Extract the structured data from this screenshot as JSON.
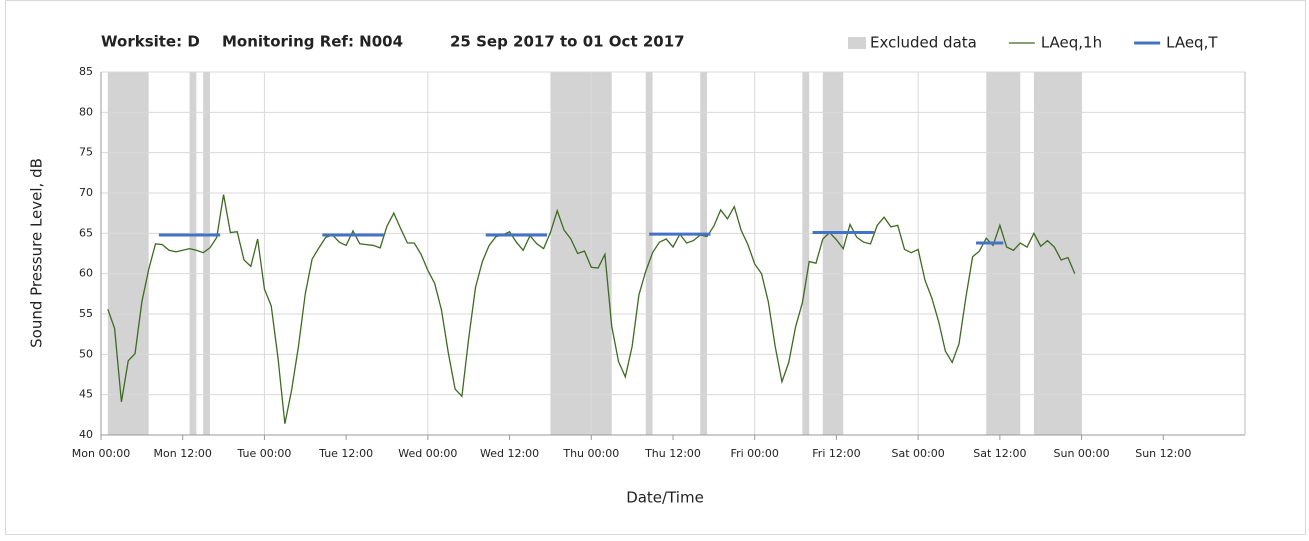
{
  "chart_data": {
    "type": "line",
    "title_parts": [
      "Worksite: D",
      "Monitoring Ref: N004",
      "25 Sep 2017 to 01 Oct 2017"
    ],
    "y_label": "Sound Pressure Level, dB",
    "x_label": "Date/Time",
    "legend": "top-right",
    "xlim": [
      0,
      168
    ],
    "xticks": [
      {
        "value": 0,
        "label": "Mon 00:00"
      },
      {
        "value": 12,
        "label": "Mon 12:00"
      },
      {
        "value": 24,
        "label": "Tue 00:00"
      },
      {
        "value": 36,
        "label": "Tue 12:00"
      },
      {
        "value": 48,
        "label": "Wed 00:00"
      },
      {
        "value": 60,
        "label": "Wed 12:00"
      },
      {
        "value": 72,
        "label": "Thu 00:00"
      },
      {
        "value": 84,
        "label": "Thu 12:00"
      },
      {
        "value": 96,
        "label": "Fri 00:00"
      },
      {
        "value": 108,
        "label": "Fri 12:00"
      },
      {
        "value": 120,
        "label": "Sat 00:00"
      },
      {
        "value": 132,
        "label": "Sat 12:00"
      },
      {
        "value": 144,
        "label": "Sun 00:00"
      },
      {
        "value": 156,
        "label": "Sun 12:00"
      }
    ],
    "xgrid": [
      24,
      48,
      72,
      96,
      120,
      144
    ],
    "ylim": [
      40,
      85
    ],
    "yticks": [
      40,
      45,
      50,
      55,
      60,
      65,
      70,
      75,
      80,
      85
    ],
    "grid": true,
    "series": [
      {
        "name": "Excluded data",
        "style": "band",
        "color": "#d3d3d3",
        "ranges": [
          [
            1,
            7
          ],
          [
            13,
            14
          ],
          [
            15,
            16
          ],
          [
            66,
            75
          ],
          [
            80,
            81
          ],
          [
            88,
            89
          ],
          [
            103,
            104
          ],
          [
            106,
            109
          ],
          [
            130,
            135
          ],
          [
            137,
            144
          ]
        ]
      },
      {
        "name": "LAeq,1h",
        "style": "line",
        "color": "#3d6b22",
        "x": [
          1,
          2,
          3,
          4,
          5,
          6,
          7,
          8,
          9,
          10,
          11,
          12,
          13,
          14,
          15,
          16,
          17,
          18,
          19,
          20,
          21,
          22,
          23,
          24,
          25,
          26,
          27,
          28,
          29,
          30,
          31,
          32,
          33,
          34,
          35,
          36,
          37,
          38,
          39,
          40,
          41,
          42,
          43,
          44,
          45,
          46,
          47,
          48,
          49,
          50,
          51,
          52,
          53,
          54,
          55,
          56,
          57,
          58,
          59,
          60,
          61,
          62,
          63,
          64,
          65,
          66,
          67,
          68,
          69,
          70,
          71,
          72,
          73,
          74,
          75,
          76,
          77,
          78,
          79,
          80,
          81,
          82,
          83,
          84,
          85,
          86,
          87,
          88,
          89,
          90,
          91,
          92,
          93,
          94,
          95,
          96,
          97,
          98,
          99,
          100,
          101,
          102,
          103,
          104,
          105,
          106,
          107,
          108,
          109,
          110,
          111,
          112,
          113,
          114,
          115,
          116,
          117,
          118,
          119,
          120,
          121,
          122,
          123,
          124,
          125,
          126,
          127,
          128,
          129,
          130,
          131,
          132,
          133,
          134,
          135,
          136,
          137,
          138,
          139,
          140,
          141,
          142,
          143
        ],
        "values": [
          55.6,
          53.2,
          44.1,
          49.2,
          50.1,
          56.5,
          60.5,
          63.7,
          63.6,
          62.9,
          62.7,
          62.9,
          63.1,
          62.9,
          62.6,
          63.2,
          64.5,
          69.8,
          65.1,
          65.2,
          61.7,
          60.9,
          64.3,
          58.1,
          56.0,
          49.5,
          41.4,
          45.6,
          51.0,
          57.5,
          61.8,
          63.2,
          64.5,
          64.8,
          63.9,
          63.5,
          65.3,
          63.7,
          63.6,
          63.5,
          63.2,
          65.9,
          67.5,
          65.6,
          63.8,
          63.8,
          62.4,
          60.4,
          58.8,
          55.5,
          50.2,
          45.7,
          44.8,
          52.0,
          58.3,
          61.5,
          63.5,
          64.6,
          64.8,
          65.2,
          63.9,
          62.9,
          64.7,
          63.7,
          63.1,
          65.1,
          67.8,
          65.4,
          64.3,
          62.5,
          62.8,
          60.8,
          60.7,
          62.4,
          53.5,
          49.1,
          47.2,
          51.0,
          57.4,
          60.3,
          62.6,
          63.9,
          64.3,
          63.3,
          64.9,
          63.8,
          64.1,
          64.8,
          64.6,
          65.9,
          67.9,
          66.8,
          68.3,
          65.4,
          63.6,
          61.2,
          60.0,
          56.5,
          51.0,
          46.6,
          49.0,
          53.4,
          56.4,
          61.5,
          61.3,
          64.3,
          65.1,
          64.2,
          63.1,
          66.1,
          64.5,
          63.9,
          63.7,
          66.0,
          67.0,
          65.8,
          66.0,
          63.0,
          62.6,
          63.0,
          59.2,
          57.0,
          54.1,
          50.4,
          49.0,
          51.3,
          57.0,
          62.1,
          62.8,
          64.4,
          63.5,
          66.0,
          63.3,
          62.9,
          63.8,
          63.3,
          65.0,
          63.4,
          64.1,
          63.3,
          61.7,
          62.0,
          60.0
        ]
      },
      {
        "name": "LAeq,T",
        "style": "segments",
        "color": "#4472c4",
        "x_start": [
          8.5,
          32.5,
          56.5,
          80.5,
          104.5,
          128.5
        ],
        "x_end": [
          17.5,
          41.5,
          65.5,
          89.5,
          113.5,
          132.5
        ],
        "values": [
          64.8,
          64.8,
          64.8,
          64.9,
          65.1,
          63.8
        ]
      }
    ]
  }
}
